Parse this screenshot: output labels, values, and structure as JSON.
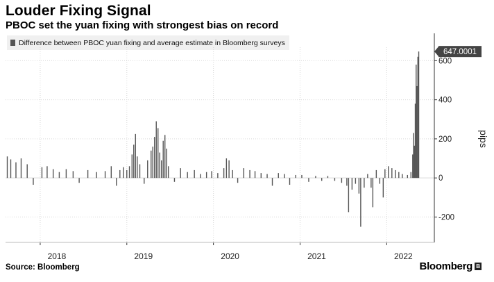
{
  "header": {
    "title": "Louder Fixing Signal",
    "subtitle": "PBOC set the yuan fixing with strongest bias on record"
  },
  "legend": {
    "label": "Difference between PBOC yuan fixing and average estimate in Bloomberg surveys"
  },
  "footer": {
    "source": "Source: Bloomberg",
    "brand": "Bloomberg"
  },
  "colors": {
    "bar": "#555555",
    "grid": "#d9d9d9",
    "axis": "#333333",
    "callout_bg": "#444444",
    "callout_text": "#ffffff"
  },
  "chart_data": {
    "type": "bar",
    "title": "Louder Fixing Signal",
    "subtitle": "PBOC set the yuan fixing with strongest bias on record",
    "xlabel": "",
    "ylabel": "pips",
    "ylim": [
      -330,
      740
    ],
    "xlim": [
      2017.6,
      2022.55
    ],
    "y_ticks": [
      -200,
      0,
      200,
      400,
      600
    ],
    "x_ticks": [
      {
        "label": "2018",
        "value": 2018.0
      },
      {
        "label": "2019",
        "value": 2019.0
      },
      {
        "label": "2020",
        "value": 2020.0
      },
      {
        "label": "2021",
        "value": 2021.0
      },
      {
        "label": "2022",
        "value": 2022.0
      }
    ],
    "grid": true,
    "last_value_label": "647.0001",
    "series": [
      {
        "name": "Difference between PBOC yuan fixing and average estimate in Bloomberg surveys",
        "points": [
          {
            "date": 2017.62,
            "value": 110
          },
          {
            "date": 2017.66,
            "value": 95
          },
          {
            "date": 2017.72,
            "value": 80
          },
          {
            "date": 2017.78,
            "value": 100
          },
          {
            "date": 2017.85,
            "value": 70
          },
          {
            "date": 2017.92,
            "value": -35
          },
          {
            "date": 2018.02,
            "value": 55
          },
          {
            "date": 2018.08,
            "value": 60
          },
          {
            "date": 2018.15,
            "value": 45
          },
          {
            "date": 2018.22,
            "value": 30
          },
          {
            "date": 2018.3,
            "value": 45
          },
          {
            "date": 2018.38,
            "value": 35
          },
          {
            "date": 2018.45,
            "value": -25
          },
          {
            "date": 2018.55,
            "value": 40
          },
          {
            "date": 2018.65,
            "value": 30
          },
          {
            "date": 2018.75,
            "value": 35
          },
          {
            "date": 2018.82,
            "value": 60
          },
          {
            "date": 2018.88,
            "value": -40
          },
          {
            "date": 2018.92,
            "value": 40
          },
          {
            "date": 2018.96,
            "value": 55
          },
          {
            "date": 2019.0,
            "value": 40
          },
          {
            "date": 2019.03,
            "value": 60
          },
          {
            "date": 2019.06,
            "value": 120
          },
          {
            "date": 2019.08,
            "value": 170
          },
          {
            "date": 2019.1,
            "value": 225
          },
          {
            "date": 2019.12,
            "value": 110
          },
          {
            "date": 2019.15,
            "value": 70
          },
          {
            "date": 2019.2,
            "value": -30
          },
          {
            "date": 2019.24,
            "value": 90
          },
          {
            "date": 2019.28,
            "value": 140
          },
          {
            "date": 2019.3,
            "value": 160
          },
          {
            "date": 2019.32,
            "value": 210
          },
          {
            "date": 2019.34,
            "value": 290
          },
          {
            "date": 2019.36,
            "value": 255
          },
          {
            "date": 2019.38,
            "value": 130
          },
          {
            "date": 2019.4,
            "value": 90
          },
          {
            "date": 2019.42,
            "value": 190
          },
          {
            "date": 2019.44,
            "value": 220
          },
          {
            "date": 2019.46,
            "value": 150
          },
          {
            "date": 2019.48,
            "value": 60
          },
          {
            "date": 2019.55,
            "value": -20
          },
          {
            "date": 2019.62,
            "value": 50
          },
          {
            "date": 2019.7,
            "value": 30
          },
          {
            "date": 2019.78,
            "value": 40
          },
          {
            "date": 2019.85,
            "value": 20
          },
          {
            "date": 2019.92,
            "value": 30
          },
          {
            "date": 2019.98,
            "value": 35
          },
          {
            "date": 2020.05,
            "value": 25
          },
          {
            "date": 2020.12,
            "value": 50
          },
          {
            "date": 2020.15,
            "value": 100
          },
          {
            "date": 2020.18,
            "value": 90
          },
          {
            "date": 2020.22,
            "value": 40
          },
          {
            "date": 2020.28,
            "value": -25
          },
          {
            "date": 2020.35,
            "value": 50
          },
          {
            "date": 2020.42,
            "value": 40
          },
          {
            "date": 2020.48,
            "value": 35
          },
          {
            "date": 2020.55,
            "value": 25
          },
          {
            "date": 2020.62,
            "value": 20
          },
          {
            "date": 2020.68,
            "value": -40
          },
          {
            "date": 2020.75,
            "value": 25
          },
          {
            "date": 2020.82,
            "value": 20
          },
          {
            "date": 2020.88,
            "value": -35
          },
          {
            "date": 2020.95,
            "value": 15
          },
          {
            "date": 2021.02,
            "value": 15
          },
          {
            "date": 2021.1,
            "value": -20
          },
          {
            "date": 2021.18,
            "value": 10
          },
          {
            "date": 2021.25,
            "value": -15
          },
          {
            "date": 2021.32,
            "value": 10
          },
          {
            "date": 2021.4,
            "value": -15
          },
          {
            "date": 2021.48,
            "value": -25
          },
          {
            "date": 2021.54,
            "value": -40
          },
          {
            "date": 2021.56,
            "value": -175
          },
          {
            "date": 2021.6,
            "value": -60
          },
          {
            "date": 2021.64,
            "value": -30
          },
          {
            "date": 2021.68,
            "value": -80
          },
          {
            "date": 2021.7,
            "value": -250
          },
          {
            "date": 2021.74,
            "value": -50
          },
          {
            "date": 2021.78,
            "value": 20
          },
          {
            "date": 2021.82,
            "value": -50
          },
          {
            "date": 2021.84,
            "value": -150
          },
          {
            "date": 2021.88,
            "value": 40
          },
          {
            "date": 2021.92,
            "value": -30
          },
          {
            "date": 2021.96,
            "value": -100
          },
          {
            "date": 2021.98,
            "value": 45
          },
          {
            "date": 2022.02,
            "value": 60
          },
          {
            "date": 2022.06,
            "value": 50
          },
          {
            "date": 2022.1,
            "value": 40
          },
          {
            "date": 2022.14,
            "value": 30
          },
          {
            "date": 2022.18,
            "value": 20
          },
          {
            "date": 2022.24,
            "value": 15
          },
          {
            "date": 2022.28,
            "value": 30
          },
          {
            "date": 2022.3,
            "value": 120
          },
          {
            "date": 2022.31,
            "value": 230
          },
          {
            "date": 2022.32,
            "value": 165
          },
          {
            "date": 2022.33,
            "value": 380
          },
          {
            "date": 2022.34,
            "value": 580
          },
          {
            "date": 2022.35,
            "value": 470
          },
          {
            "date": 2022.36,
            "value": 620
          },
          {
            "date": 2022.37,
            "value": 647
          }
        ]
      }
    ]
  }
}
